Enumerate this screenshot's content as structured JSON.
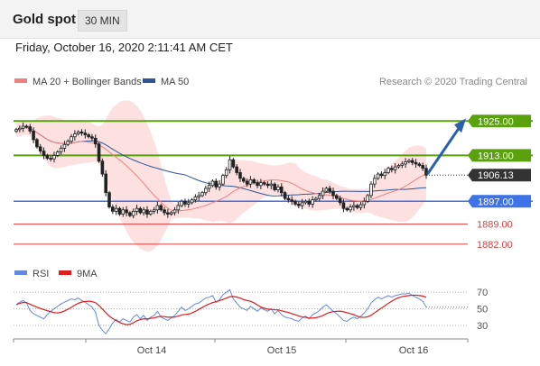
{
  "header": {
    "title": "Gold spot",
    "interval": "30 MIN"
  },
  "date_line": "Friday, October 16, 2020 2:11:41 AM CET",
  "attribution": "Research © 2020 Trading Central",
  "colors": {
    "ma20": "#f08080",
    "ma50": "#2f5597",
    "bollinger": "#fcd5d5",
    "resistance": "#5aa10e",
    "pivot": "#3d72e8",
    "support": "#e03b3b",
    "candle": "#222222",
    "rsi": "#6688dd",
    "rsi_ma": "#e01e1e",
    "arrow": "#2a5fb0"
  },
  "chart_data": [
    {
      "type": "candlestick",
      "legend": [
        "MA 20 + Bollinger Bands",
        "MA 50"
      ],
      "legend_position": "top-left",
      "x_ticks": [
        "Oct 14",
        "Oct 15",
        "Oct 16"
      ],
      "y_range": [
        1876,
        1932
      ],
      "levels": [
        {
          "label": "1925.00",
          "value": 1925.0,
          "kind": "resistance"
        },
        {
          "label": "1913.00",
          "value": 1913.0,
          "kind": "resistance"
        },
        {
          "label": "1906.13",
          "value": 1906.13,
          "kind": "current"
        },
        {
          "label": "1897.00",
          "value": 1897.0,
          "kind": "pivot"
        },
        {
          "label": "1889.00",
          "value": 1889.0,
          "kind": "support"
        },
        {
          "label": "1882.00",
          "value": 1882.0,
          "kind": "support"
        }
      ],
      "close": [
        1922.0,
        1922.5,
        1923.2,
        1923.0,
        1921.5,
        1918.5,
        1916.0,
        1914.5,
        1913.0,
        1912.0,
        1911.8,
        1913.0,
        1914.2,
        1915.5,
        1916.8,
        1918.0,
        1919.5,
        1920.5,
        1921.2,
        1920.8,
        1920.2,
        1919.5,
        1919.0,
        1917.0,
        1911.0,
        1906.5,
        1900.0,
        1895.0,
        1893.5,
        1894.5,
        1892.5,
        1894.0,
        1893.0,
        1892.0,
        1893.5,
        1894.5,
        1893.0,
        1894.0,
        1892.5,
        1893.5,
        1894.0,
        1895.5,
        1894.0,
        1893.0,
        1892.5,
        1893.0,
        1894.0,
        1895.5,
        1897.0,
        1896.0,
        1896.5,
        1897.5,
        1898.5,
        1899.0,
        1900.0,
        1901.5,
        1902.5,
        1904.0,
        1902.0,
        1903.0,
        1906.0,
        1908.0,
        1911.5,
        1909.0,
        1907.0,
        1905.0,
        1904.0,
        1903.0,
        1904.5,
        1903.5,
        1902.5,
        1903.5,
        1903.0,
        1902.5,
        1903.0,
        1901.0,
        1902.0,
        1900.0,
        1898.0,
        1897.5,
        1897.0,
        1896.0,
        1895.5,
        1896.5,
        1897.0,
        1896.0,
        1897.5,
        1898.0,
        1899.0,
        1900.5,
        1901.5,
        1900.5,
        1899.0,
        1898.0,
        1896.5,
        1894.5,
        1894.0,
        1895.0,
        1895.5,
        1894.8,
        1895.8,
        1897.0,
        1899.0,
        1903.0,
        1905.0,
        1906.5,
        1906.0,
        1907.0,
        1908.5,
        1908.0,
        1909.0,
        1909.5,
        1910.0,
        1910.8,
        1911.2,
        1910.5,
        1910.0,
        1909.5,
        1908.5,
        1906.13
      ],
      "rsi": {
        "legend": [
          "RSI",
          "9MA"
        ],
        "levels": [
          70,
          50,
          30
        ],
        "range": [
          18,
          80
        ],
        "rsi_values": [
          55,
          58,
          60,
          57,
          48,
          44,
          42,
          40,
          38,
          43,
          47,
          50,
          53,
          56,
          58,
          60,
          62,
          61,
          63,
          60,
          58,
          55,
          52,
          46,
          30,
          24,
          20,
          26,
          33,
          37,
          34,
          38,
          36,
          34,
          40,
          43,
          38,
          42,
          36,
          40,
          42,
          47,
          40,
          38,
          36,
          39,
          42,
          47,
          52,
          48,
          50,
          53,
          56,
          57,
          60,
          63,
          64,
          66,
          58,
          61,
          67,
          70,
          73,
          62,
          57,
          52,
          50,
          48,
          53,
          50,
          47,
          51,
          49,
          47,
          50,
          44,
          48,
          43,
          40,
          39,
          38,
          36,
          35,
          39,
          41,
          38,
          43,
          45,
          48,
          52,
          55,
          51,
          47,
          44,
          40,
          36,
          35,
          38,
          40,
          38,
          41,
          45,
          50,
          57,
          61,
          64,
          62,
          64,
          66,
          64,
          66,
          67,
          68,
          68,
          69,
          66,
          64,
          62,
          59,
          52
        ]
      }
    }
  ]
}
